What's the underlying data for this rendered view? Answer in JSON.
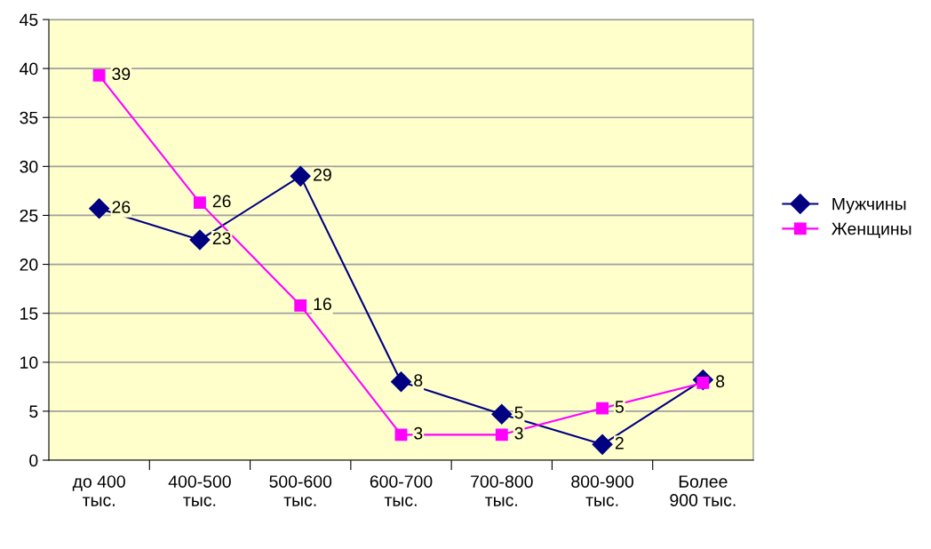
{
  "chart_data": {
    "type": "line",
    "categories": [
      "до 400\nтыс.",
      "400-500\nтыс.",
      "500-600\nтыс.",
      "600-700\nтыс.",
      "700-800\nтыс.",
      "800-900\nтыс.",
      "Более\n900 тыс."
    ],
    "series": [
      {
        "name": "Мужчины",
        "color": "#000080",
        "marker": "diamond",
        "values": [
          25.7,
          22.5,
          29.0,
          8.0,
          4.7,
          1.6,
          8.2
        ],
        "value_labels": [
          "26",
          "23",
          "29",
          "8",
          "5",
          "2",
          null
        ]
      },
      {
        "name": "Женщины",
        "color": "#ff00ff",
        "marker": "square",
        "values": [
          39.3,
          26.3,
          15.8,
          2.6,
          2.6,
          5.3,
          7.9
        ],
        "value_labels": [
          "39",
          "26",
          "16",
          "3",
          "3",
          "5",
          "8"
        ]
      }
    ],
    "ylim": [
      0,
      45
    ],
    "yticks": [
      0,
      5,
      10,
      15,
      20,
      25,
      30,
      35,
      40,
      45
    ],
    "grid": "y",
    "legend": "right"
  }
}
